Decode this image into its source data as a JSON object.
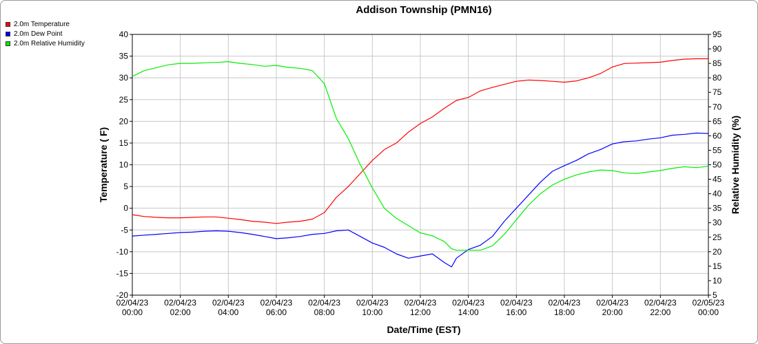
{
  "chart_data": {
    "type": "line",
    "title": "Addison Township (PMN16)",
    "xlabel": "Date/Time (EST)",
    "ylabel": "Temperature ( F)",
    "y2label": "Relative Humidity (%)",
    "ylim": [
      -20,
      40
    ],
    "y2lim": [
      5,
      95
    ],
    "yticks": [
      -20,
      -15,
      -10,
      -5,
      0,
      5,
      10,
      15,
      20,
      25,
      30,
      35,
      40
    ],
    "y2ticks": [
      5,
      10,
      15,
      20,
      25,
      30,
      35,
      40,
      45,
      50,
      55,
      60,
      65,
      70,
      75,
      80,
      85,
      90,
      95
    ],
    "xlim": [
      0,
      24
    ],
    "xticks": [
      {
        "date": "02/04/23",
        "time": "00:00"
      },
      {
        "date": "02/04/23",
        "time": "02:00"
      },
      {
        "date": "02/04/23",
        "time": "04:00"
      },
      {
        "date": "02/04/23",
        "time": "06:00"
      },
      {
        "date": "02/04/23",
        "time": "08:00"
      },
      {
        "date": "02/04/23",
        "time": "10:00"
      },
      {
        "date": "02/04/23",
        "time": "12:00"
      },
      {
        "date": "02/04/23",
        "time": "14:00"
      },
      {
        "date": "02/04/23",
        "time": "16:00"
      },
      {
        "date": "02/04/23",
        "time": "18:00"
      },
      {
        "date": "02/04/23",
        "time": "20:00"
      },
      {
        "date": "02/04/23",
        "time": "22:00"
      },
      {
        "date": "02/05/23",
        "time": "00:00"
      }
    ],
    "grid": true,
    "legend_position": "top-left",
    "series": [
      {
        "name": "2.0m Temperature",
        "color": "#ff0000",
        "axis": "left",
        "points": [
          [
            0,
            -1.5
          ],
          [
            0.5,
            -1.9
          ],
          [
            1,
            -2.1
          ],
          [
            1.5,
            -2.2
          ],
          [
            2,
            -2.2
          ],
          [
            2.5,
            -2.1
          ],
          [
            3,
            -2.0
          ],
          [
            3.5,
            -2.0
          ],
          [
            4,
            -2.3
          ],
          [
            4.5,
            -2.6
          ],
          [
            5,
            -3.0
          ],
          [
            5.5,
            -3.2
          ],
          [
            6,
            -3.5
          ],
          [
            6.5,
            -3.2
          ],
          [
            7,
            -3.0
          ],
          [
            7.5,
            -2.5
          ],
          [
            8,
            -1.0
          ],
          [
            8.5,
            2.5
          ],
          [
            9,
            5.0
          ],
          [
            9.5,
            8.0
          ],
          [
            10,
            11.0
          ],
          [
            10.5,
            13.5
          ],
          [
            11,
            15.0
          ],
          [
            11.5,
            17.5
          ],
          [
            12,
            19.5
          ],
          [
            12.5,
            21.0
          ],
          [
            13,
            23.0
          ],
          [
            13.5,
            24.8
          ],
          [
            14,
            25.5
          ],
          [
            14.5,
            27.0
          ],
          [
            15,
            27.8
          ],
          [
            15.5,
            28.5
          ],
          [
            16,
            29.2
          ],
          [
            16.5,
            29.5
          ],
          [
            17,
            29.4
          ],
          [
            17.5,
            29.2
          ],
          [
            18,
            29.0
          ],
          [
            18.5,
            29.3
          ],
          [
            19,
            30.0
          ],
          [
            19.5,
            31.0
          ],
          [
            20,
            32.5
          ],
          [
            20.5,
            33.3
          ],
          [
            21,
            33.4
          ],
          [
            21.5,
            33.5
          ],
          [
            22,
            33.6
          ],
          [
            22.5,
            34.0
          ],
          [
            23,
            34.3
          ],
          [
            23.5,
            34.4
          ],
          [
            24,
            34.4
          ]
        ]
      },
      {
        "name": "2.0m Dew Point",
        "color": "#0000ff",
        "axis": "left",
        "points": [
          [
            0,
            -6.4
          ],
          [
            0.5,
            -6.2
          ],
          [
            1,
            -6.0
          ],
          [
            1.5,
            -5.8
          ],
          [
            2,
            -5.6
          ],
          [
            2.5,
            -5.5
          ],
          [
            3,
            -5.3
          ],
          [
            3.5,
            -5.2
          ],
          [
            4,
            -5.3
          ],
          [
            4.5,
            -5.6
          ],
          [
            5,
            -6.0
          ],
          [
            5.5,
            -6.5
          ],
          [
            6,
            -7.0
          ],
          [
            6.5,
            -6.8
          ],
          [
            7,
            -6.5
          ],
          [
            7.5,
            -6.0
          ],
          [
            8,
            -5.8
          ],
          [
            8.5,
            -5.2
          ],
          [
            9,
            -5.0
          ],
          [
            9.5,
            -6.5
          ],
          [
            10,
            -8.0
          ],
          [
            10.5,
            -9.0
          ],
          [
            11,
            -10.5
          ],
          [
            11.5,
            -11.5
          ],
          [
            12,
            -11.0
          ],
          [
            12.5,
            -10.5
          ],
          [
            13,
            -12.5
          ],
          [
            13.3,
            -13.5
          ],
          [
            13.5,
            -11.5
          ],
          [
            14,
            -9.5
          ],
          [
            14.5,
            -8.5
          ],
          [
            15,
            -6.5
          ],
          [
            15.5,
            -3.0
          ],
          [
            16,
            0.0
          ],
          [
            16.5,
            3.0
          ],
          [
            17,
            6.0
          ],
          [
            17.5,
            8.5
          ],
          [
            18,
            9.8
          ],
          [
            18.5,
            11.0
          ],
          [
            19,
            12.5
          ],
          [
            19.5,
            13.5
          ],
          [
            20,
            14.8
          ],
          [
            20.5,
            15.3
          ],
          [
            21,
            15.5
          ],
          [
            21.5,
            15.9
          ],
          [
            22,
            16.2
          ],
          [
            22.5,
            16.8
          ],
          [
            23,
            17.0
          ],
          [
            23.5,
            17.3
          ],
          [
            24,
            17.2
          ]
        ]
      },
      {
        "name": "2.0m Relative Humidity",
        "color": "#00ee00",
        "axis": "right",
        "points": [
          [
            0,
            80.5
          ],
          [
            0.5,
            82.5
          ],
          [
            1,
            83.5
          ],
          [
            1.5,
            84.5
          ],
          [
            2,
            85.0
          ],
          [
            2.5,
            85.0
          ],
          [
            3,
            85.2
          ],
          [
            3.5,
            85.3
          ],
          [
            4,
            85.6
          ],
          [
            4.5,
            85.0
          ],
          [
            5,
            84.6
          ],
          [
            5.5,
            84.0
          ],
          [
            6,
            84.3
          ],
          [
            6.5,
            83.6
          ],
          [
            7,
            83.3
          ],
          [
            7.5,
            82.5
          ],
          [
            8,
            78.0
          ],
          [
            8.5,
            66.0
          ],
          [
            9,
            59.0
          ],
          [
            9.5,
            50.0
          ],
          [
            10,
            42.0
          ],
          [
            10.5,
            35.0
          ],
          [
            11,
            31.5
          ],
          [
            11.5,
            29.0
          ],
          [
            12,
            26.5
          ],
          [
            12.5,
            25.5
          ],
          [
            13,
            23.5
          ],
          [
            13.3,
            21.0
          ],
          [
            13.5,
            20.5
          ],
          [
            14,
            20.5
          ],
          [
            14.5,
            20.5
          ],
          [
            15,
            22.0
          ],
          [
            15.5,
            26.0
          ],
          [
            16,
            31.0
          ],
          [
            16.5,
            36.0
          ],
          [
            17,
            40.0
          ],
          [
            17.5,
            43.0
          ],
          [
            18,
            45.0
          ],
          [
            18.5,
            46.5
          ],
          [
            19,
            47.5
          ],
          [
            19.5,
            48.2
          ],
          [
            20,
            48.0
          ],
          [
            20.5,
            47.2
          ],
          [
            21,
            47.0
          ],
          [
            21.5,
            47.5
          ],
          [
            22,
            48.0
          ],
          [
            22.5,
            48.8
          ],
          [
            23,
            49.3
          ],
          [
            23.5,
            49.0
          ],
          [
            24,
            49.5
          ]
        ]
      }
    ]
  }
}
